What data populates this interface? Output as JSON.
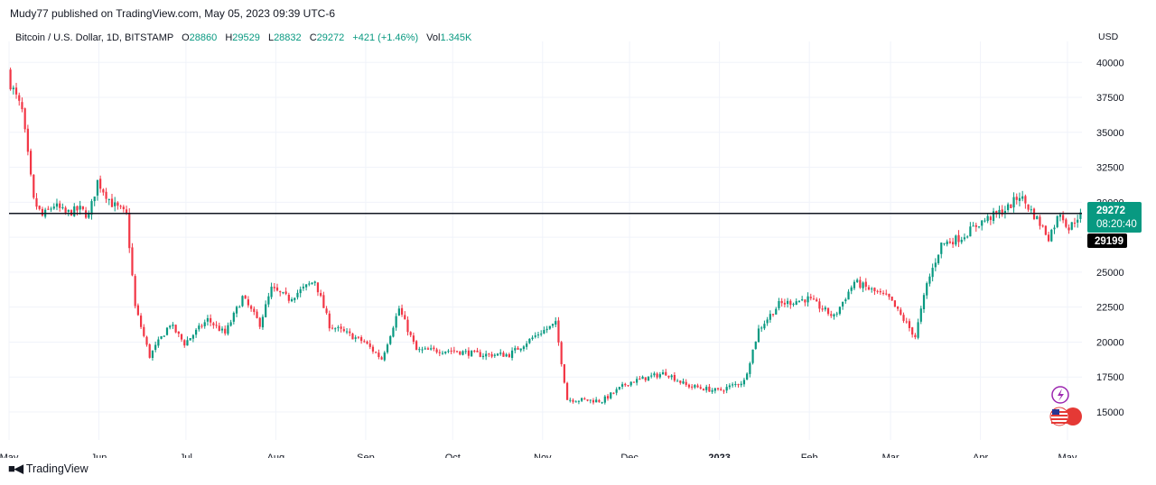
{
  "header": {
    "published": "Mudy77 published on TradingView.com, May 05, 2023 09:39 UTC-6"
  },
  "legend": {
    "symbol": "Bitcoin / U.S. Dollar, 1D, BITSTAMP",
    "o_label": "O",
    "o": "28860",
    "h_label": "H",
    "h": "29529",
    "l_label": "L",
    "l": "28832",
    "c_label": "C",
    "c": "29272",
    "change": "+421 (+1.46%)",
    "vol_label": "Vol",
    "vol": "1.345K"
  },
  "price_axis": {
    "currency": "USD",
    "last_price": "29272",
    "countdown": "08:20:40",
    "line_price": "29199"
  },
  "footer": {
    "brand": "TradingView"
  },
  "colors": {
    "up": "#089981",
    "down": "#f23645",
    "line": "#131722",
    "badge": "#089981"
  },
  "chart_data": {
    "type": "candlestick",
    "title": "Bitcoin / U.S. Dollar, 1D, BITSTAMP",
    "x_ticks": [
      "May",
      "Jun",
      "Jul",
      "Aug",
      "Sep",
      "Oct",
      "Nov",
      "Dec",
      "2023",
      "Feb",
      "Mar",
      "Apr",
      "May"
    ],
    "y_ticks": [
      15000,
      17500,
      20000,
      22500,
      25000,
      27500,
      30000,
      32500,
      35000,
      37500,
      40000
    ],
    "ylim": [
      13000,
      41500
    ],
    "horizontal_line": 29199,
    "last_close": 29272,
    "grid": true,
    "approx_daily_close": [
      [
        "2022-05-01",
        38500
      ],
      [
        "2022-05-05",
        36500
      ],
      [
        "2022-05-09",
        30100
      ],
      [
        "2022-05-12",
        29000
      ],
      [
        "2022-05-16",
        29800
      ],
      [
        "2022-05-20",
        29200
      ],
      [
        "2022-05-25",
        29500
      ],
      [
        "2022-05-28",
        29000
      ],
      [
        "2022-05-31",
        31500
      ],
      [
        "2022-06-05",
        29900
      ],
      [
        "2022-06-10",
        29100
      ],
      [
        "2022-06-13",
        22500
      ],
      [
        "2022-06-18",
        19000
      ],
      [
        "2022-06-25",
        21300
      ],
      [
        "2022-06-30",
        19900
      ],
      [
        "2022-07-08",
        21600
      ],
      [
        "2022-07-14",
        20600
      ],
      [
        "2022-07-20",
        23200
      ],
      [
        "2022-07-26",
        21300
      ],
      [
        "2022-07-30",
        23800
      ],
      [
        "2022-08-05",
        23100
      ],
      [
        "2022-08-14",
        24400
      ],
      [
        "2022-08-19",
        21200
      ],
      [
        "2022-08-31",
        20000
      ],
      [
        "2022-09-06",
        18800
      ],
      [
        "2022-09-12",
        22400
      ],
      [
        "2022-09-18",
        19400
      ],
      [
        "2022-09-30",
        19400
      ],
      [
        "2022-10-10",
        19100
      ],
      [
        "2022-10-20",
        19100
      ],
      [
        "2022-10-30",
        20600
      ],
      [
        "2022-11-05",
        21300
      ],
      [
        "2022-11-09",
        15900
      ],
      [
        "2022-11-21",
        15800
      ],
      [
        "2022-11-30",
        17100
      ],
      [
        "2022-12-13",
        17800
      ],
      [
        "2022-12-20",
        16900
      ],
      [
        "2022-12-31",
        16500
      ],
      [
        "2023-01-09",
        17200
      ],
      [
        "2023-01-14",
        20900
      ],
      [
        "2023-01-21",
        22700
      ],
      [
        "2023-01-31",
        23100
      ],
      [
        "2023-02-09",
        21800
      ],
      [
        "2023-02-16",
        24300
      ],
      [
        "2023-02-28",
        23100
      ],
      [
        "2023-03-09",
        20400
      ],
      [
        "2023-03-13",
        24100
      ],
      [
        "2023-03-18",
        27000
      ],
      [
        "2023-03-25",
        27500
      ],
      [
        "2023-03-31",
        28500
      ],
      [
        "2023-04-10",
        29600
      ],
      [
        "2023-04-14",
        30500
      ],
      [
        "2023-04-20",
        28800
      ],
      [
        "2023-04-24",
        27500
      ],
      [
        "2023-04-28",
        29300
      ],
      [
        "2023-05-01",
        28100
      ],
      [
        "2023-05-05",
        29272
      ]
    ]
  }
}
